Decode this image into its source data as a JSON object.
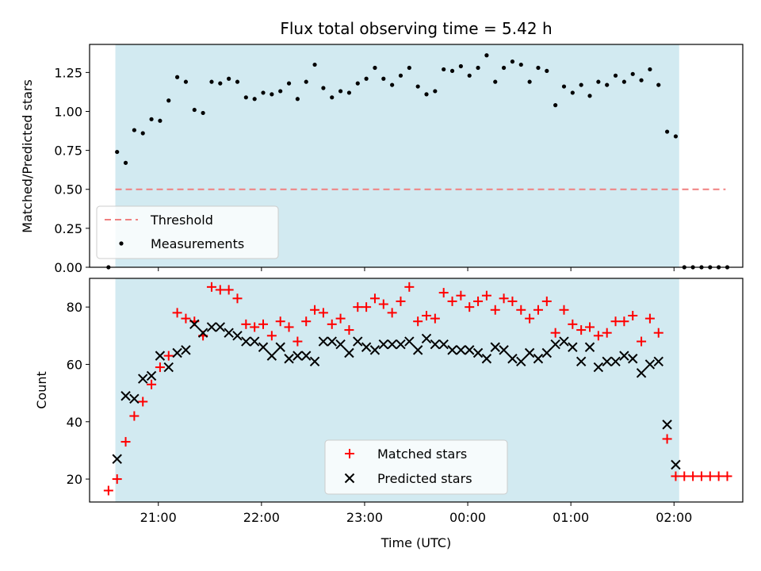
{
  "figure": {
    "title": "Flux total observing time = 5.42 h",
    "shade_color": "#add8e6",
    "threshold_color": "#f08080",
    "matched_color": "#ff0000",
    "predicted_color": "#000000",
    "measurement_color": "#000000"
  },
  "chart_data": [
    {
      "type": "scatter",
      "title": "Flux total observing time = 5.42 h",
      "xlabel": "",
      "ylabel": "Matched/Predicted stars",
      "xlim": [
        "20:20",
        "02:40"
      ],
      "ylim": [
        0,
        1.43
      ],
      "yticks": [
        "0.00",
        "0.25",
        "0.50",
        "0.75",
        "1.00",
        "1.25"
      ],
      "shaded_interval": [
        "20:35",
        "02:03"
      ],
      "legend": {
        "position": "bottom-left",
        "entries": [
          "Threshold",
          "Measurements"
        ]
      },
      "threshold": {
        "name": "Threshold",
        "y": 0.5,
        "x_start": "20:35",
        "x_end": "02:30"
      },
      "series": [
        {
          "name": "Measurements",
          "marker": "dot",
          "points": [
            [
              "20:31",
              0.0
            ],
            [
              "20:36",
              0.74
            ],
            [
              "20:41",
              0.67
            ],
            [
              "20:46",
              0.88
            ],
            [
              "20:51",
              0.86
            ],
            [
              "20:56",
              0.95
            ],
            [
              "21:01",
              0.94
            ],
            [
              "21:06",
              1.07
            ],
            [
              "21:11",
              1.22
            ],
            [
              "21:16",
              1.19
            ],
            [
              "21:21",
              1.01
            ],
            [
              "21:26",
              0.99
            ],
            [
              "21:31",
              1.19
            ],
            [
              "21:36",
              1.18
            ],
            [
              "21:41",
              1.21
            ],
            [
              "21:46",
              1.19
            ],
            [
              "21:51",
              1.09
            ],
            [
              "21:56",
              1.08
            ],
            [
              "22:01",
              1.12
            ],
            [
              "22:06",
              1.11
            ],
            [
              "22:11",
              1.13
            ],
            [
              "22:16",
              1.18
            ],
            [
              "22:21",
              1.08
            ],
            [
              "22:26",
              1.19
            ],
            [
              "22:31",
              1.3
            ],
            [
              "22:36",
              1.15
            ],
            [
              "22:41",
              1.09
            ],
            [
              "22:46",
              1.13
            ],
            [
              "22:51",
              1.12
            ],
            [
              "22:56",
              1.18
            ],
            [
              "23:01",
              1.21
            ],
            [
              "23:06",
              1.28
            ],
            [
              "23:11",
              1.21
            ],
            [
              "23:16",
              1.17
            ],
            [
              "23:21",
              1.23
            ],
            [
              "23:26",
              1.28
            ],
            [
              "23:31",
              1.16
            ],
            [
              "23:36",
              1.11
            ],
            [
              "23:41",
              1.13
            ],
            [
              "23:46",
              1.27
            ],
            [
              "23:51",
              1.26
            ],
            [
              "23:56",
              1.29
            ],
            [
              "00:01",
              1.23
            ],
            [
              "00:06",
              1.28
            ],
            [
              "00:11",
              1.36
            ],
            [
              "00:16",
              1.19
            ],
            [
              "00:21",
              1.28
            ],
            [
              "00:26",
              1.32
            ],
            [
              "00:31",
              1.3
            ],
            [
              "00:36",
              1.19
            ],
            [
              "00:41",
              1.28
            ],
            [
              "00:46",
              1.26
            ],
            [
              "00:51",
              1.04
            ],
            [
              "00:56",
              1.16
            ],
            [
              "01:01",
              1.12
            ],
            [
              "01:06",
              1.17
            ],
            [
              "01:11",
              1.1
            ],
            [
              "01:16",
              1.19
            ],
            [
              "01:21",
              1.17
            ],
            [
              "01:26",
              1.23
            ],
            [
              "01:31",
              1.19
            ],
            [
              "01:36",
              1.24
            ],
            [
              "01:41",
              1.2
            ],
            [
              "01:46",
              1.27
            ],
            [
              "01:51",
              1.17
            ],
            [
              "01:56",
              0.87
            ],
            [
              "02:01",
              0.84
            ],
            [
              "02:06",
              0.0
            ],
            [
              "02:11",
              0.0
            ],
            [
              "02:16",
              0.0
            ],
            [
              "02:21",
              0.0
            ],
            [
              "02:26",
              0.0
            ],
            [
              "02:31",
              0.0
            ]
          ]
        }
      ]
    },
    {
      "type": "scatter",
      "title": "",
      "xlabel": "Time (UTC)",
      "ylabel": "Count",
      "xlim": [
        "20:20",
        "02:40"
      ],
      "ylim": [
        12,
        90
      ],
      "xticks": [
        "21:00",
        "22:00",
        "23:00",
        "00:00",
        "01:00",
        "02:00"
      ],
      "yticks": [
        "20",
        "40",
        "60",
        "80"
      ],
      "shaded_interval": [
        "20:35",
        "02:03"
      ],
      "legend": {
        "position": "lower-center",
        "entries": [
          "Matched stars",
          "Predicted stars"
        ]
      },
      "series": [
        {
          "name": "Matched stars",
          "marker": "plus",
          "points": [
            [
              "20:31",
              16
            ],
            [
              "20:36",
              20
            ],
            [
              "20:41",
              33
            ],
            [
              "20:46",
              42
            ],
            [
              "20:51",
              47
            ],
            [
              "20:56",
              53
            ],
            [
              "21:01",
              59
            ],
            [
              "21:06",
              63
            ],
            [
              "21:11",
              78
            ],
            [
              "21:16",
              76
            ],
            [
              "21:21",
              75
            ],
            [
              "21:26",
              70
            ],
            [
              "21:31",
              87
            ],
            [
              "21:36",
              86
            ],
            [
              "21:41",
              86
            ],
            [
              "21:46",
              83
            ],
            [
              "21:51",
              74
            ],
            [
              "21:56",
              73
            ],
            [
              "22:01",
              74
            ],
            [
              "22:06",
              70
            ],
            [
              "22:11",
              75
            ],
            [
              "22:16",
              73
            ],
            [
              "22:21",
              68
            ],
            [
              "22:26",
              75
            ],
            [
              "22:31",
              79
            ],
            [
              "22:36",
              78
            ],
            [
              "22:41",
              74
            ],
            [
              "22:46",
              76
            ],
            [
              "22:51",
              72
            ],
            [
              "22:56",
              80
            ],
            [
              "23:01",
              80
            ],
            [
              "23:06",
              83
            ],
            [
              "23:11",
              81
            ],
            [
              "23:16",
              78
            ],
            [
              "23:21",
              82
            ],
            [
              "23:26",
              87
            ],
            [
              "23:31",
              75
            ],
            [
              "23:36",
              77
            ],
            [
              "23:41",
              76
            ],
            [
              "23:46",
              85
            ],
            [
              "23:51",
              82
            ],
            [
              "23:56",
              84
            ],
            [
              "00:01",
              80
            ],
            [
              "00:06",
              82
            ],
            [
              "00:11",
              84
            ],
            [
              "00:16",
              79
            ],
            [
              "00:21",
              83
            ],
            [
              "00:26",
              82
            ],
            [
              "00:31",
              79
            ],
            [
              "00:36",
              76
            ],
            [
              "00:41",
              79
            ],
            [
              "00:46",
              82
            ],
            [
              "00:51",
              71
            ],
            [
              "00:56",
              79
            ],
            [
              "01:01",
              74
            ],
            [
              "01:06",
              72
            ],
            [
              "01:11",
              73
            ],
            [
              "01:16",
              70
            ],
            [
              "01:21",
              71
            ],
            [
              "01:26",
              75
            ],
            [
              "01:31",
              75
            ],
            [
              "01:36",
              77
            ],
            [
              "01:41",
              68
            ],
            [
              "01:46",
              76
            ],
            [
              "01:51",
              71
            ],
            [
              "01:56",
              34
            ],
            [
              "02:01",
              21
            ],
            [
              "02:06",
              21
            ],
            [
              "02:11",
              21
            ],
            [
              "02:16",
              21
            ],
            [
              "02:21",
              21
            ],
            [
              "02:26",
              21
            ],
            [
              "02:31",
              21
            ]
          ]
        },
        {
          "name": "Predicted stars",
          "marker": "x",
          "points": [
            [
              "20:36",
              27
            ],
            [
              "20:41",
              49
            ],
            [
              "20:46",
              48
            ],
            [
              "20:51",
              55
            ],
            [
              "20:56",
              56
            ],
            [
              "21:01",
              63
            ],
            [
              "21:06",
              59
            ],
            [
              "21:11",
              64
            ],
            [
              "21:16",
              65
            ],
            [
              "21:21",
              74
            ],
            [
              "21:26",
              71
            ],
            [
              "21:31",
              73
            ],
            [
              "21:36",
              73
            ],
            [
              "21:41",
              71
            ],
            [
              "21:46",
              70
            ],
            [
              "21:51",
              68
            ],
            [
              "21:56",
              68
            ],
            [
              "22:01",
              66
            ],
            [
              "22:06",
              63
            ],
            [
              "22:11",
              66
            ],
            [
              "22:16",
              62
            ],
            [
              "22:21",
              63
            ],
            [
              "22:26",
              63
            ],
            [
              "22:31",
              61
            ],
            [
              "22:36",
              68
            ],
            [
              "22:41",
              68
            ],
            [
              "22:46",
              67
            ],
            [
              "22:51",
              64
            ],
            [
              "22:56",
              68
            ],
            [
              "23:01",
              66
            ],
            [
              "23:06",
              65
            ],
            [
              "23:11",
              67
            ],
            [
              "23:16",
              67
            ],
            [
              "23:21",
              67
            ],
            [
              "23:26",
              68
            ],
            [
              "23:31",
              65
            ],
            [
              "23:36",
              69
            ],
            [
              "23:41",
              67
            ],
            [
              "23:46",
              67
            ],
            [
              "23:51",
              65
            ],
            [
              "23:56",
              65
            ],
            [
              "00:01",
              65
            ],
            [
              "00:06",
              64
            ],
            [
              "00:11",
              62
            ],
            [
              "00:16",
              66
            ],
            [
              "00:21",
              65
            ],
            [
              "00:26",
              62
            ],
            [
              "00:31",
              61
            ],
            [
              "00:36",
              64
            ],
            [
              "00:41",
              62
            ],
            [
              "00:46",
              64
            ],
            [
              "00:51",
              67
            ],
            [
              "00:56",
              68
            ],
            [
              "01:01",
              66
            ],
            [
              "01:06",
              61
            ],
            [
              "01:11",
              66
            ],
            [
              "01:16",
              59
            ],
            [
              "01:21",
              61
            ],
            [
              "01:26",
              61
            ],
            [
              "01:31",
              63
            ],
            [
              "01:36",
              62
            ],
            [
              "01:41",
              57
            ],
            [
              "01:46",
              60
            ],
            [
              "01:51",
              61
            ],
            [
              "01:56",
              39
            ],
            [
              "02:01",
              25
            ]
          ]
        }
      ]
    }
  ]
}
